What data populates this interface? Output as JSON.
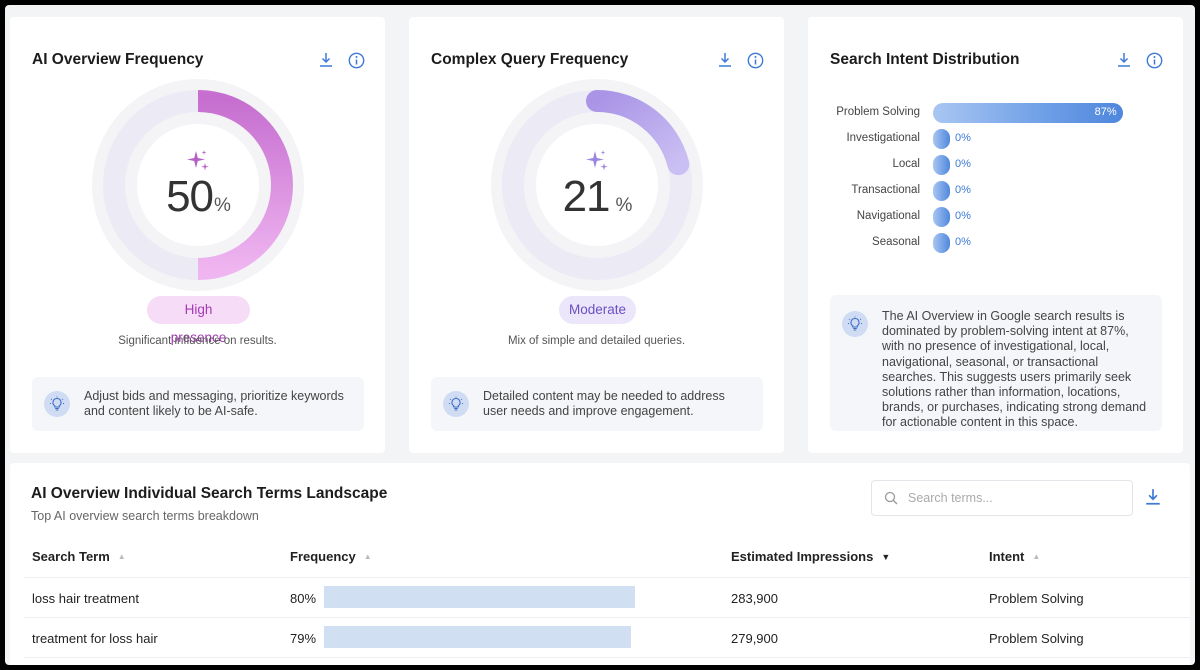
{
  "colors": {
    "accent": "#3d7ad6",
    "card1_arc_start": "#c66fd0",
    "card1_arc_end": "#efb5f0",
    "card2_arc": "#b6a6ea",
    "badge1_bg": "#f6dcf7",
    "badge1_text": "#a43ab5",
    "badge2_bg": "#ebe6f9",
    "badge2_text": "#6b4fc4"
  },
  "cards": [
    {
      "title": "AI Overview Frequency",
      "value": "50",
      "percent_sign": "%",
      "gauge_fraction": 0.5,
      "badge": "High presence",
      "subtext": "Significant influence on results.",
      "tip": "Adjust bids and messaging, prioritize keywords and content likely to be AI-safe."
    },
    {
      "title": "Complex Query Frequency",
      "value": "21",
      "percent_sign": "%",
      "gauge_fraction": 0.21,
      "badge": "Moderate",
      "subtext": "Mix of simple and detailed queries.",
      "tip": "Detailed content may be needed to address user needs and improve engagement."
    }
  ],
  "intent": {
    "title": "Search Intent Distribution",
    "rows": [
      {
        "label": "Problem Solving",
        "value": "87%",
        "fraction": 0.87
      },
      {
        "label": "Investigational",
        "value": "0%",
        "fraction": 0
      },
      {
        "label": "Local",
        "value": "0%",
        "fraction": 0
      },
      {
        "label": "Transactional",
        "value": "0%",
        "fraction": 0
      },
      {
        "label": "Navigational",
        "value": "0%",
        "fraction": 0
      },
      {
        "label": "Seasonal",
        "value": "0%",
        "fraction": 0
      }
    ],
    "summary": "The AI Overview in Google search results is dominated by problem-solving intent at 87%, with no presence of investigational, local, navigational, seasonal, or transactional searches. This suggests users primarily seek solutions rather than information, locations, brands, or purchases, indicating strong demand for actionable content in this space."
  },
  "landscape": {
    "title": "AI Overview Individual Search Terms Landscape",
    "subtitle": "Top AI overview search terms breakdown",
    "search_placeholder": "Search terms...",
    "columns": {
      "term": "Search Term",
      "frequency": "Frequency",
      "impressions": "Estimated Impressions",
      "intent": "Intent"
    },
    "rows": [
      {
        "term": "loss hair treatment",
        "frequency": "80%",
        "fraction": 0.8,
        "impressions": "283,900",
        "intent": "Problem Solving"
      },
      {
        "term": "treatment for loss hair",
        "frequency": "79%",
        "fraction": 0.79,
        "impressions": "279,900",
        "intent": "Problem Solving"
      }
    ]
  },
  "icons": {
    "download": "download-icon",
    "info": "info-icon",
    "sparkle": "sparkle-icon",
    "lightbulb": "lightbulb-icon",
    "search": "search-icon"
  }
}
